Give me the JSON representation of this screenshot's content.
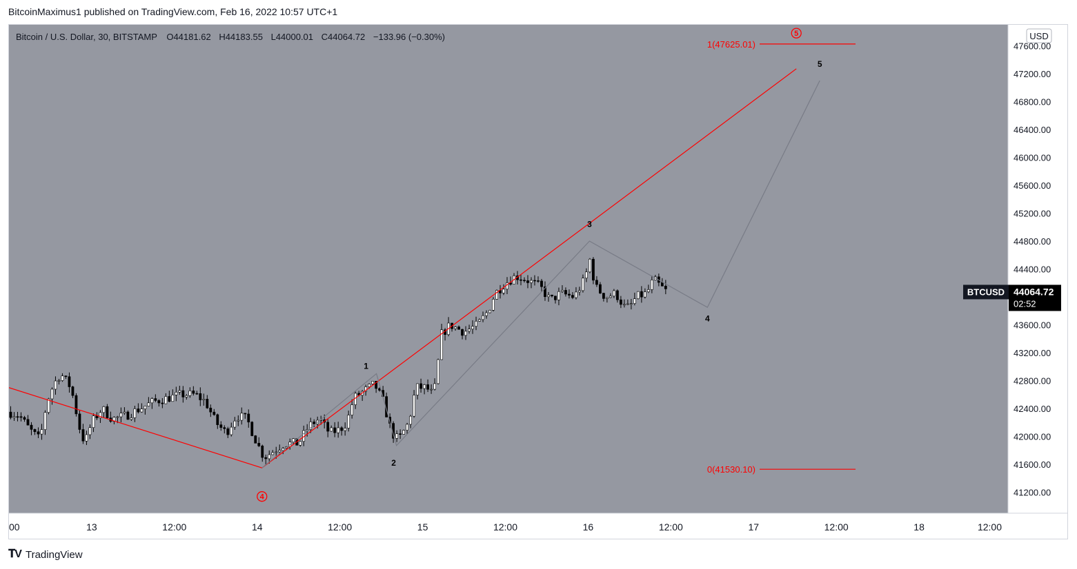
{
  "header": {
    "published": "BitcoinMaximus1 published on TradingView.com, Feb 16, 2022 10:57 UTC+1"
  },
  "legend": {
    "symbol": "Bitcoin / U.S. Dollar, 30, BITSTAMP",
    "o_label": "O",
    "o": "44181.62",
    "h_label": "H",
    "h": "44183.55",
    "l_label": "L",
    "l": "44000.01",
    "c_label": "C",
    "c": "44064.72",
    "change": "−133.96 (−0.30%)"
  },
  "axis": {
    "currency": "USD",
    "symbol_tag": "BTCUSD",
    "last_price": "44064.72",
    "countdown": "02:52"
  },
  "footer": {
    "brand": "TradingView"
  },
  "colors": {
    "background": "#9598a1",
    "red": "#ff0000",
    "up": "#ffffff",
    "down": "#000000",
    "wave": "#787b86"
  },
  "chart_data": {
    "type": "candlestick",
    "title": "Bitcoin / U.S. Dollar, 30, BITSTAMP",
    "ylim": [
      40900,
      47900
    ],
    "y_ticks": [
      "47600.00",
      "47200.00",
      "46800.00",
      "46400.00",
      "46000.00",
      "45600.00",
      "45200.00",
      "44800.00",
      "44400.00",
      "44000.00",
      "43600.00",
      "43200.00",
      "42800.00",
      "42400.00",
      "42000.00",
      "41600.00",
      "41200.00"
    ],
    "x_ticks": [
      {
        "label": "00",
        "t": 0
      },
      {
        "label": "13",
        "t": 12
      },
      {
        "label": "12:00",
        "t": 24
      },
      {
        "label": "14",
        "t": 36
      },
      {
        "label": "12:00",
        "t": 48
      },
      {
        "label": "15",
        "t": 60
      },
      {
        "label": "12:00",
        "t": 72
      },
      {
        "label": "16",
        "t": 84
      },
      {
        "label": "12:00",
        "t": 96
      },
      {
        "label": "17",
        "t": 108
      },
      {
        "label": "12:00",
        "t": 120
      },
      {
        "label": "18",
        "t": 132
      },
      {
        "label": "12:00",
        "t": 144
      }
    ],
    "x_unit": "hours since Feb 13 00:00",
    "xlim": [
      0,
      144.9
    ],
    "fib_levels": [
      {
        "label": "1(47625.01)",
        "price": 47625.01
      },
      {
        "label": "0(41530.10)",
        "price": 41530.1
      }
    ],
    "red_wave": [
      {
        "t": 0,
        "p": 42700
      },
      {
        "t": 36.7,
        "p": 41550
      },
      {
        "t": 114.2,
        "p": 47270
      }
    ],
    "grey_wave": [
      {
        "t": 36.7,
        "p": 41550
      },
      {
        "t": 53.3,
        "p": 42900
      },
      {
        "t": 56.2,
        "p": 41870
      },
      {
        "t": 84.2,
        "p": 44800
      },
      {
        "t": 101.3,
        "p": 43850
      },
      {
        "t": 117.6,
        "p": 47100
      }
    ],
    "wave_labels": [
      {
        "label": "4",
        "t": 36.7,
        "p": 41140,
        "circled": true
      },
      {
        "label": "5",
        "t": 114.2,
        "p": 47780,
        "circled": true
      },
      {
        "label": "1",
        "t": 51.8,
        "p": 42970,
        "circled": false
      },
      {
        "label": "2",
        "t": 55.8,
        "p": 41580,
        "circled": false
      },
      {
        "label": "3",
        "t": 84.2,
        "p": 45000,
        "circled": false
      },
      {
        "label": "4",
        "t": 101.3,
        "p": 43650,
        "circled": false
      },
      {
        "label": "5",
        "t": 117.6,
        "p": 47300,
        "circled": false
      }
    ],
    "price_path": [
      {
        "t": 0,
        "p": 42350
      },
      {
        "t": 1.5,
        "p": 42300
      },
      {
        "t": 3,
        "p": 42100
      },
      {
        "t": 4.5,
        "p": 41950
      },
      {
        "t": 5.5,
        "p": 42500
      },
      {
        "t": 6.5,
        "p": 42750
      },
      {
        "t": 7.5,
        "p": 42900
      },
      {
        "t": 9,
        "p": 42700
      },
      {
        "t": 10.3,
        "p": 42100
      },
      {
        "t": 11,
        "p": 41900
      },
      {
        "t": 12,
        "p": 42200
      },
      {
        "t": 13.5,
        "p": 42400
      },
      {
        "t": 15,
        "p": 42250
      },
      {
        "t": 17,
        "p": 42300
      },
      {
        "t": 19,
        "p": 42400
      },
      {
        "t": 21,
        "p": 42500
      },
      {
        "t": 23,
        "p": 42550
      },
      {
        "t": 25,
        "p": 42600
      },
      {
        "t": 27,
        "p": 42600
      },
      {
        "t": 28.5,
        "p": 42500
      },
      {
        "t": 30,
        "p": 42200
      },
      {
        "t": 31.5,
        "p": 42050
      },
      {
        "t": 33,
        "p": 42300
      },
      {
        "t": 34.5,
        "p": 42250
      },
      {
        "t": 36,
        "p": 41900
      },
      {
        "t": 37,
        "p": 41700
      },
      {
        "t": 38.5,
        "p": 41800
      },
      {
        "t": 40,
        "p": 41900
      },
      {
        "t": 42,
        "p": 41900
      },
      {
        "t": 43.5,
        "p": 42150
      },
      {
        "t": 45,
        "p": 42250
      },
      {
        "t": 46.5,
        "p": 42050
      },
      {
        "t": 48,
        "p": 42100
      },
      {
        "t": 49,
        "p": 42200
      },
      {
        "t": 50,
        "p": 42550
      },
      {
        "t": 51.5,
        "p": 42650
      },
      {
        "t": 53,
        "p": 42750
      },
      {
        "t": 54.3,
        "p": 42500
      },
      {
        "t": 55.5,
        "p": 42050
      },
      {
        "t": 56.5,
        "p": 41950
      },
      {
        "t": 58,
        "p": 42200
      },
      {
        "t": 59,
        "p": 42700
      },
      {
        "t": 60.5,
        "p": 42700
      },
      {
        "t": 61.5,
        "p": 42600
      },
      {
        "t": 62,
        "p": 42800
      },
      {
        "t": 62.6,
        "p": 43450
      },
      {
        "t": 64,
        "p": 43600
      },
      {
        "t": 66,
        "p": 43500
      },
      {
        "t": 68,
        "p": 43600
      },
      {
        "t": 69.5,
        "p": 43800
      },
      {
        "t": 70.5,
        "p": 44050
      },
      {
        "t": 72,
        "p": 44200
      },
      {
        "t": 73.5,
        "p": 44300
      },
      {
        "t": 75,
        "p": 44250
      },
      {
        "t": 77,
        "p": 44150
      },
      {
        "t": 78.5,
        "p": 43950
      },
      {
        "t": 80,
        "p": 44050
      },
      {
        "t": 82,
        "p": 44000
      },
      {
        "t": 83.5,
        "p": 44250
      },
      {
        "t": 84.3,
        "p": 44550
      },
      {
        "t": 85,
        "p": 44150
      },
      {
        "t": 86.5,
        "p": 44000
      },
      {
        "t": 88,
        "p": 44050
      },
      {
        "t": 89.3,
        "p": 43850
      },
      {
        "t": 90,
        "p": 43850
      },
      {
        "t": 91,
        "p": 44000
      },
      {
        "t": 92.5,
        "p": 44050
      },
      {
        "t": 93.5,
        "p": 44250
      },
      {
        "t": 94.5,
        "p": 44150
      },
      {
        "t": 95.5,
        "p": 44064.72
      }
    ]
  }
}
